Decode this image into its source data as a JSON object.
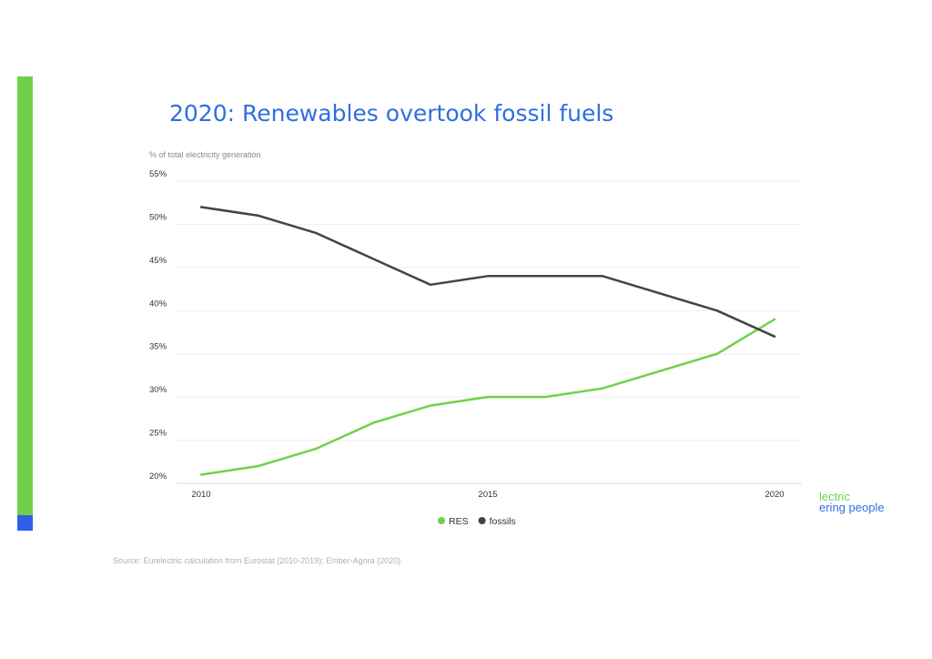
{
  "slide": {
    "title": "2020: Renewables overtook fossil fuels",
    "source": "Source: Eurelectric calculation from Eurostat (2010-2019); Ember-Agora (2020)",
    "brand_line1": "lectric",
    "brand_line2": "ering people",
    "accent_green": "#6fd14a",
    "accent_blue": "#2f5fe8"
  },
  "chart_data": {
    "type": "line",
    "title": "2020: Renewables overtook fossil fuels",
    "ylabel": "% of total electricity generation",
    "xlabel": "",
    "x": [
      2010,
      2011,
      2012,
      2013,
      2014,
      2015,
      2016,
      2017,
      2018,
      2019,
      2020
    ],
    "xticks": [
      2010,
      2015,
      2020
    ],
    "yticks": [
      20,
      25,
      30,
      35,
      40,
      45,
      50,
      55
    ],
    "ylim": [
      20,
      55
    ],
    "xlim": [
      2010,
      2020
    ],
    "series": [
      {
        "name": "RES",
        "color": "#6fd14a",
        "values": [
          21,
          22,
          24,
          27,
          29,
          30,
          30,
          31,
          33,
          35,
          39
        ]
      },
      {
        "name": "fossils",
        "color": "#444444",
        "values": [
          52,
          51,
          49,
          46,
          43,
          44,
          44,
          44,
          42,
          40,
          37
        ]
      }
    ],
    "grid": true,
    "legend_position": "bottom-center"
  }
}
